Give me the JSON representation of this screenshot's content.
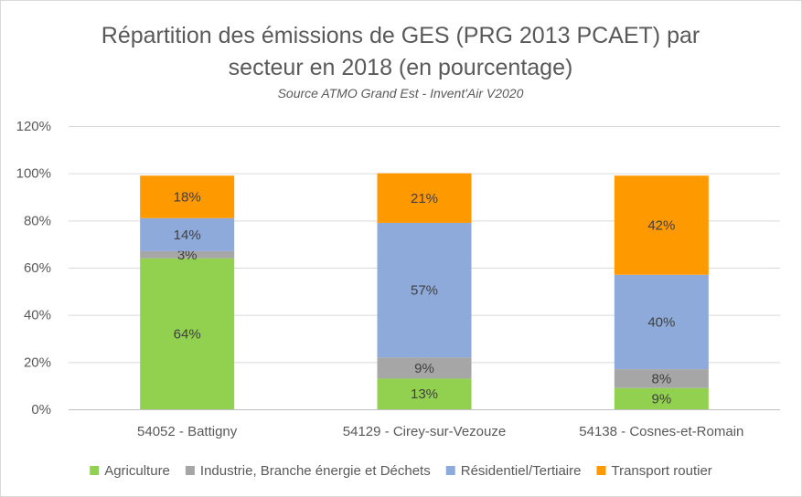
{
  "chart_data": {
    "type": "bar",
    "stacked": true,
    "title_lines": [
      "Répartition des émissions de GES (PRG 2013 PCAET) par",
      "secteur en 2018 (en pourcentage)"
    ],
    "subtitle": "Source ATMO Grand Est - Invent'Air V2020",
    "categories": [
      "54052 - Battigny",
      "54129 - Cirey-sur-Vezouze",
      "54138 - Cosnes-et-Romain"
    ],
    "series": [
      {
        "name": "Agriculture",
        "color": "#92d050",
        "values": [
          64,
          13,
          9
        ],
        "labels": [
          "64%",
          "13%",
          "9%"
        ]
      },
      {
        "name": "Industrie, Branche énergie et Déchets",
        "color": "#a6a6a6",
        "values": [
          3,
          9,
          8
        ],
        "labels": [
          "3%",
          "9%",
          "8%"
        ]
      },
      {
        "name": "Résidentiel/Tertiaire",
        "color": "#8eaadb",
        "values": [
          14,
          57,
          40
        ],
        "labels": [
          "14%",
          "57%",
          "40%"
        ]
      },
      {
        "name": "Transport routier",
        "color": "#ff9900",
        "values": [
          18,
          21,
          42
        ],
        "labels": [
          "18%",
          "21%",
          "42%"
        ]
      }
    ],
    "ylim": [
      0,
      120
    ],
    "yticks": [
      0,
      20,
      40,
      60,
      80,
      100,
      120
    ],
    "ytick_labels": [
      "0%",
      "20%",
      "40%",
      "60%",
      "80%",
      "100%",
      "120%"
    ],
    "grid": true,
    "legend_position": "bottom"
  }
}
